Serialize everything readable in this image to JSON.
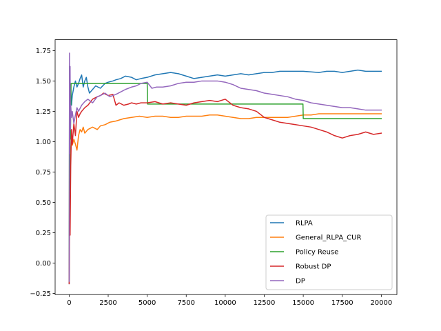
{
  "chart_data": {
    "type": "line",
    "title": "",
    "xlabel": "",
    "ylabel": "",
    "xlim": [
      -900,
      21000
    ],
    "ylim": [
      -0.26,
      1.84
    ],
    "xticks": [
      0,
      2500,
      5000,
      7500,
      10000,
      12500,
      15000,
      17500,
      20000
    ],
    "xtick_labels": [
      "0",
      "2500",
      "5000",
      "7500",
      "10000",
      "12500",
      "15000",
      "17500",
      "20000"
    ],
    "yticks": [
      -0.25,
      0.0,
      0.25,
      0.5,
      0.75,
      1.0,
      1.25,
      1.5,
      1.75
    ],
    "ytick_labels": [
      "−0.25",
      "0.00",
      "0.25",
      "0.50",
      "0.75",
      "1.00",
      "1.25",
      "1.50",
      "1.75"
    ],
    "grid": false,
    "legend_position": "lower right",
    "series": [
      {
        "name": "RLPA",
        "color": "#1f77b4",
        "x": [
          0,
          20,
          50,
          100,
          150,
          200,
          300,
          400,
          500,
          600,
          700,
          800,
          900,
          1000,
          1100,
          1200,
          1300,
          1500,
          1700,
          2000,
          2300,
          2500,
          2800,
          3000,
          3300,
          3600,
          4000,
          4300,
          4600,
          5000,
          5500,
          6000,
          6500,
          7000,
          7500,
          8000,
          8500,
          9000,
          9500,
          10000,
          10500,
          11000,
          11500,
          12000,
          12500,
          13000,
          13500,
          14000,
          15000,
          16000,
          16500,
          17000,
          17500,
          18000,
          18500,
          19000,
          19500,
          20000
        ],
        "y": [
          -0.17,
          0.6,
          1.2,
          1.45,
          1.3,
          1.38,
          1.45,
          1.5,
          1.45,
          1.48,
          1.52,
          1.55,
          1.45,
          1.5,
          1.53,
          1.45,
          1.4,
          1.43,
          1.46,
          1.44,
          1.48,
          1.49,
          1.5,
          1.51,
          1.52,
          1.54,
          1.53,
          1.51,
          1.52,
          1.53,
          1.55,
          1.56,
          1.57,
          1.56,
          1.54,
          1.52,
          1.53,
          1.54,
          1.55,
          1.54,
          1.55,
          1.56,
          1.55,
          1.56,
          1.57,
          1.57,
          1.58,
          1.58,
          1.58,
          1.57,
          1.58,
          1.58,
          1.57,
          1.58,
          1.59,
          1.58,
          1.58,
          1.58
        ]
      },
      {
        "name": "General_RLPA_CUR",
        "color": "#ff7f0e",
        "x": [
          0,
          30,
          60,
          100,
          150,
          200,
          300,
          400,
          500,
          600,
          700,
          800,
          900,
          1000,
          1200,
          1500,
          1800,
          2000,
          2300,
          2600,
          3000,
          3500,
          4000,
          4500,
          5000,
          5500,
          6000,
          6500,
          7000,
          7500,
          8000,
          8500,
          9000,
          9500,
          10000,
          10500,
          11000,
          11500,
          12000,
          12500,
          13000,
          13500,
          14000,
          14500,
          15000,
          15500,
          16000,
          16500,
          17000,
          17500,
          18000,
          18500,
          19000,
          19500,
          20000
        ],
        "y": [
          -0.14,
          0.5,
          0.8,
          0.95,
          1.0,
          0.97,
          1.02,
          0.98,
          0.93,
          1.05,
          1.1,
          1.08,
          1.12,
          1.07,
          1.1,
          1.12,
          1.1,
          1.13,
          1.14,
          1.16,
          1.17,
          1.19,
          1.2,
          1.21,
          1.2,
          1.21,
          1.21,
          1.2,
          1.2,
          1.21,
          1.21,
          1.21,
          1.22,
          1.22,
          1.21,
          1.2,
          1.19,
          1.19,
          1.2,
          1.2,
          1.2,
          1.2,
          1.2,
          1.21,
          1.22,
          1.22,
          1.23,
          1.23,
          1.23,
          1.23,
          1.23,
          1.23,
          1.23,
          1.23,
          1.23
        ]
      },
      {
        "name": "Policy Reuse",
        "color": "#2ca02c",
        "x": [
          0,
          20,
          40,
          60,
          80,
          100,
          120,
          150,
          4980,
          5000,
          5020,
          9980,
          10000,
          10020,
          14980,
          15000,
          15020,
          20000
        ],
        "y": [
          -0.14,
          1.62,
          0.6,
          1.4,
          1.02,
          1.25,
          1.48,
          1.48,
          1.48,
          1.48,
          1.31,
          1.31,
          1.31,
          1.31,
          1.31,
          1.19,
          1.19,
          1.19
        ]
      },
      {
        "name": "Robust DP",
        "color": "#d62728",
        "x": [
          0,
          30,
          60,
          100,
          150,
          200,
          300,
          400,
          500,
          600,
          700,
          800,
          1000,
          1200,
          1500,
          1800,
          2000,
          2200,
          2500,
          2800,
          3000,
          3200,
          3500,
          3800,
          4000,
          4300,
          4600,
          5000,
          5500,
          6000,
          6500,
          7000,
          7500,
          8000,
          8500,
          9000,
          9500,
          10000,
          10500,
          11000,
          11500,
          12000,
          12500,
          13000,
          13500,
          14000,
          14500,
          15000,
          15500,
          16000,
          16500,
          17000,
          17500,
          18000,
          18500,
          19000,
          19500,
          20000
        ],
        "y": [
          -0.17,
          0.4,
          0.23,
          0.8,
          1.1,
          0.98,
          1.15,
          1.05,
          1.25,
          1.2,
          1.23,
          1.25,
          1.28,
          1.3,
          1.35,
          1.37,
          1.38,
          1.4,
          1.38,
          1.39,
          1.3,
          1.32,
          1.3,
          1.31,
          1.32,
          1.31,
          1.32,
          1.32,
          1.33,
          1.31,
          1.32,
          1.31,
          1.3,
          1.32,
          1.33,
          1.34,
          1.33,
          1.35,
          1.3,
          1.28,
          1.27,
          1.25,
          1.2,
          1.18,
          1.16,
          1.15,
          1.14,
          1.13,
          1.12,
          1.1,
          1.08,
          1.05,
          1.03,
          1.05,
          1.06,
          1.08,
          1.06,
          1.07
        ]
      },
      {
        "name": "DP",
        "color": "#9467bd",
        "x": [
          0,
          20,
          40,
          60,
          80,
          100,
          150,
          200,
          300,
          400,
          500,
          600,
          800,
          1000,
          1200,
          1500,
          1800,
          2000,
          2300,
          2600,
          3000,
          3300,
          3600,
          4000,
          4300,
          4600,
          5000,
          5300,
          5600,
          6000,
          6500,
          7000,
          7500,
          8000,
          8500,
          9000,
          9500,
          10000,
          10500,
          11000,
          11500,
          12000,
          12500,
          13000,
          13500,
          14000,
          14500,
          15000,
          15500,
          16000,
          16500,
          17000,
          17500,
          18000,
          18500,
          19000,
          19500,
          20000
        ],
        "y": [
          -0.15,
          1.73,
          0.9,
          1.62,
          1.1,
          1.3,
          1.2,
          1.25,
          1.15,
          1.22,
          1.28,
          1.25,
          1.3,
          1.33,
          1.35,
          1.32,
          1.37,
          1.38,
          1.4,
          1.37,
          1.39,
          1.41,
          1.43,
          1.45,
          1.46,
          1.48,
          1.49,
          1.44,
          1.45,
          1.45,
          1.46,
          1.48,
          1.49,
          1.49,
          1.5,
          1.5,
          1.5,
          1.49,
          1.47,
          1.44,
          1.43,
          1.42,
          1.4,
          1.39,
          1.38,
          1.37,
          1.35,
          1.34,
          1.32,
          1.31,
          1.3,
          1.29,
          1.28,
          1.28,
          1.27,
          1.26,
          1.26,
          1.26
        ]
      }
    ]
  }
}
